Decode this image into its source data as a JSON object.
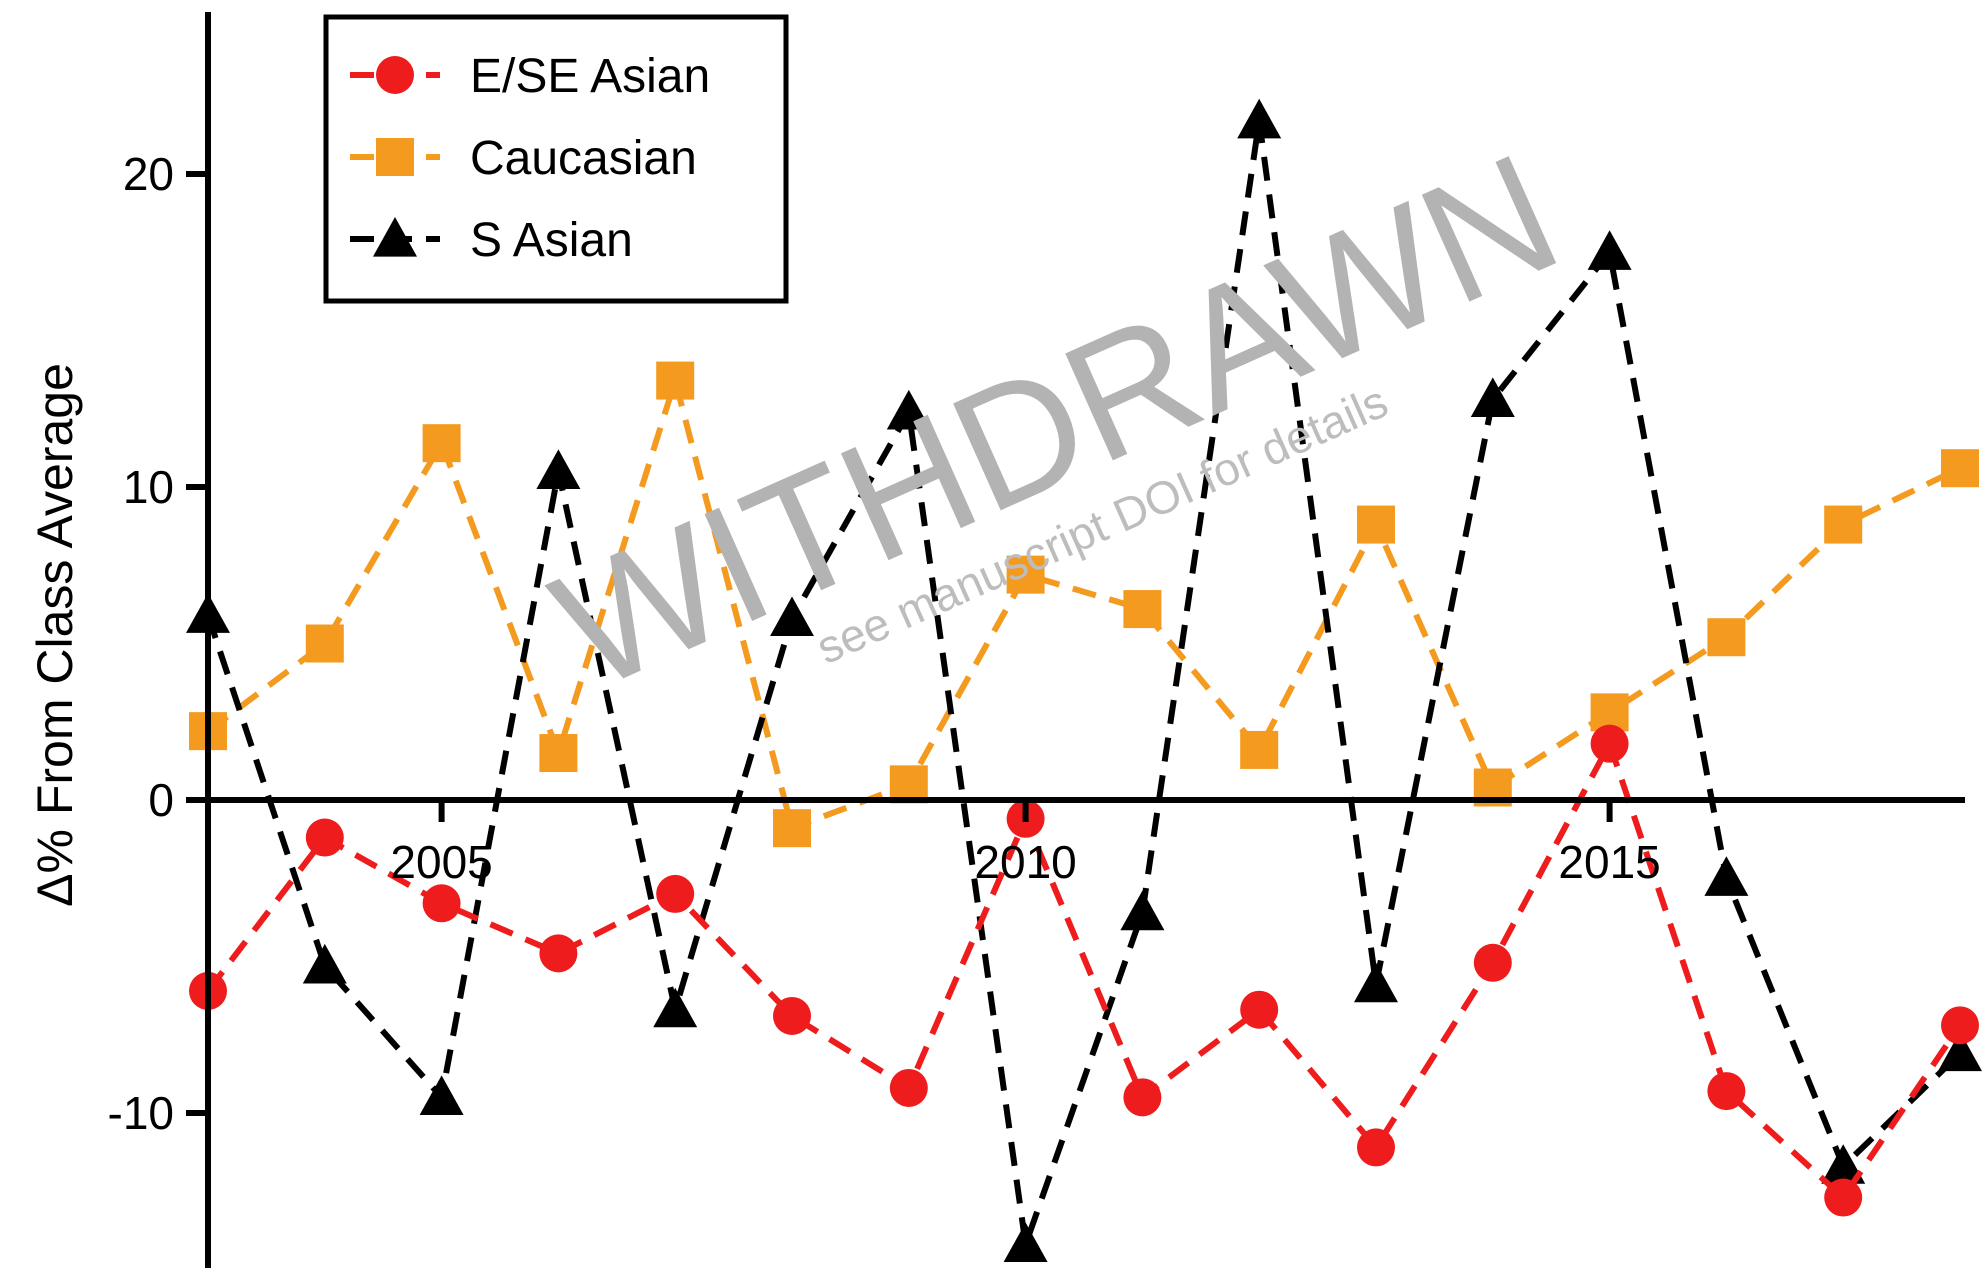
{
  "chart_data": {
    "type": "line",
    "ylabel": "Δ% From Class Average",
    "xlabel": "",
    "xlim": [
      2001,
      2019
    ],
    "ylim": [
      -15,
      25
    ],
    "x_ticks": [
      2005,
      2010,
      2015
    ],
    "x_tick_labels": [
      "2005",
      "2010",
      "2015"
    ],
    "y_ticks": [
      -10,
      0,
      10,
      20
    ],
    "y_tick_labels": [
      "-10",
      "0",
      "10",
      "20"
    ],
    "legend_position": "top-left",
    "x": [
      2003,
      2004,
      2005,
      2006,
      2007,
      2008,
      2009,
      2010,
      2011,
      2012,
      2013,
      2014,
      2015,
      2016,
      2017,
      2018
    ],
    "series": [
      {
        "name": "E/SE Asian",
        "color": "#ee1c1c",
        "marker": "circle",
        "values": [
          -6.1,
          -1.2,
          -3.3,
          -4.9,
          -3.0,
          -6.9,
          -9.2,
          -0.6,
          -9.5,
          -6.7,
          -11.1,
          -5.2,
          1.8,
          -9.3,
          -12.7,
          -7.2
        ]
      },
      {
        "name": "Caucasian",
        "color": "#f39a1f",
        "marker": "square",
        "values": [
          2.2,
          5.0,
          11.4,
          1.5,
          13.4,
          -0.9,
          0.5,
          7.2,
          6.1,
          1.6,
          8.8,
          0.4,
          2.8,
          5.2,
          8.8,
          10.6
        ]
      },
      {
        "name": "S Asian",
        "color": "#000000",
        "marker": "triangle",
        "values": [
          5.9,
          -5.3,
          -9.5,
          10.5,
          -6.7,
          5.8,
          12.4,
          -14.2,
          -3.6,
          21.7,
          -5.9,
          12.8,
          17.5,
          -2.5,
          -11.7,
          -8.1
        ]
      }
    ],
    "watermark": {
      "main": "WITHDRAWN",
      "sub": "see manuscript DOI for details"
    }
  }
}
